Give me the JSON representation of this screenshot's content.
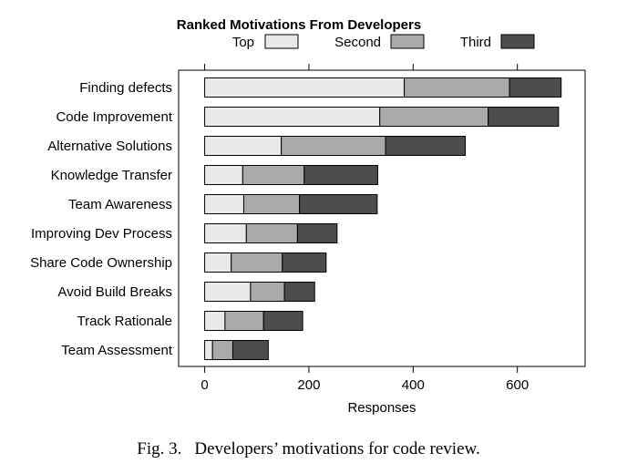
{
  "chart_data": {
    "type": "bar",
    "orientation": "horizontal",
    "stacked": true,
    "title": "Ranked Motivations From Developers",
    "xlabel": "Responses",
    "ylabel": "",
    "xlim": [
      -50,
      730
    ],
    "xticks": [
      0,
      200,
      400,
      600
    ],
    "xtick_labels": [
      "0",
      "200",
      "400",
      "600"
    ],
    "grid": false,
    "legend_position": "top",
    "categories": [
      "Finding defects",
      "Code Improvement",
      "Alternative Solutions",
      "Knowledge Transfer",
      "Team Awareness",
      "Improving Dev Process",
      "Share Code Ownership",
      "Avoid Build Breaks",
      "Track Rationale",
      "Team Assessment"
    ],
    "series": [
      {
        "name": "Top",
        "color": "#e8e8e8",
        "values": [
          383,
          336,
          147,
          73,
          75,
          80,
          51,
          88,
          39,
          15
        ]
      },
      {
        "name": "Second",
        "color": "#aaaaaa",
        "values": [
          202,
          208,
          200,
          118,
          107,
          98,
          98,
          65,
          74,
          39
        ]
      },
      {
        "name": "Third",
        "color": "#4d4d4d",
        "values": [
          99,
          135,
          153,
          141,
          149,
          76,
          84,
          58,
          75,
          68
        ]
      }
    ]
  },
  "caption": {
    "number": "Fig. 3.",
    "text": "Developers’ motivations for code review."
  }
}
